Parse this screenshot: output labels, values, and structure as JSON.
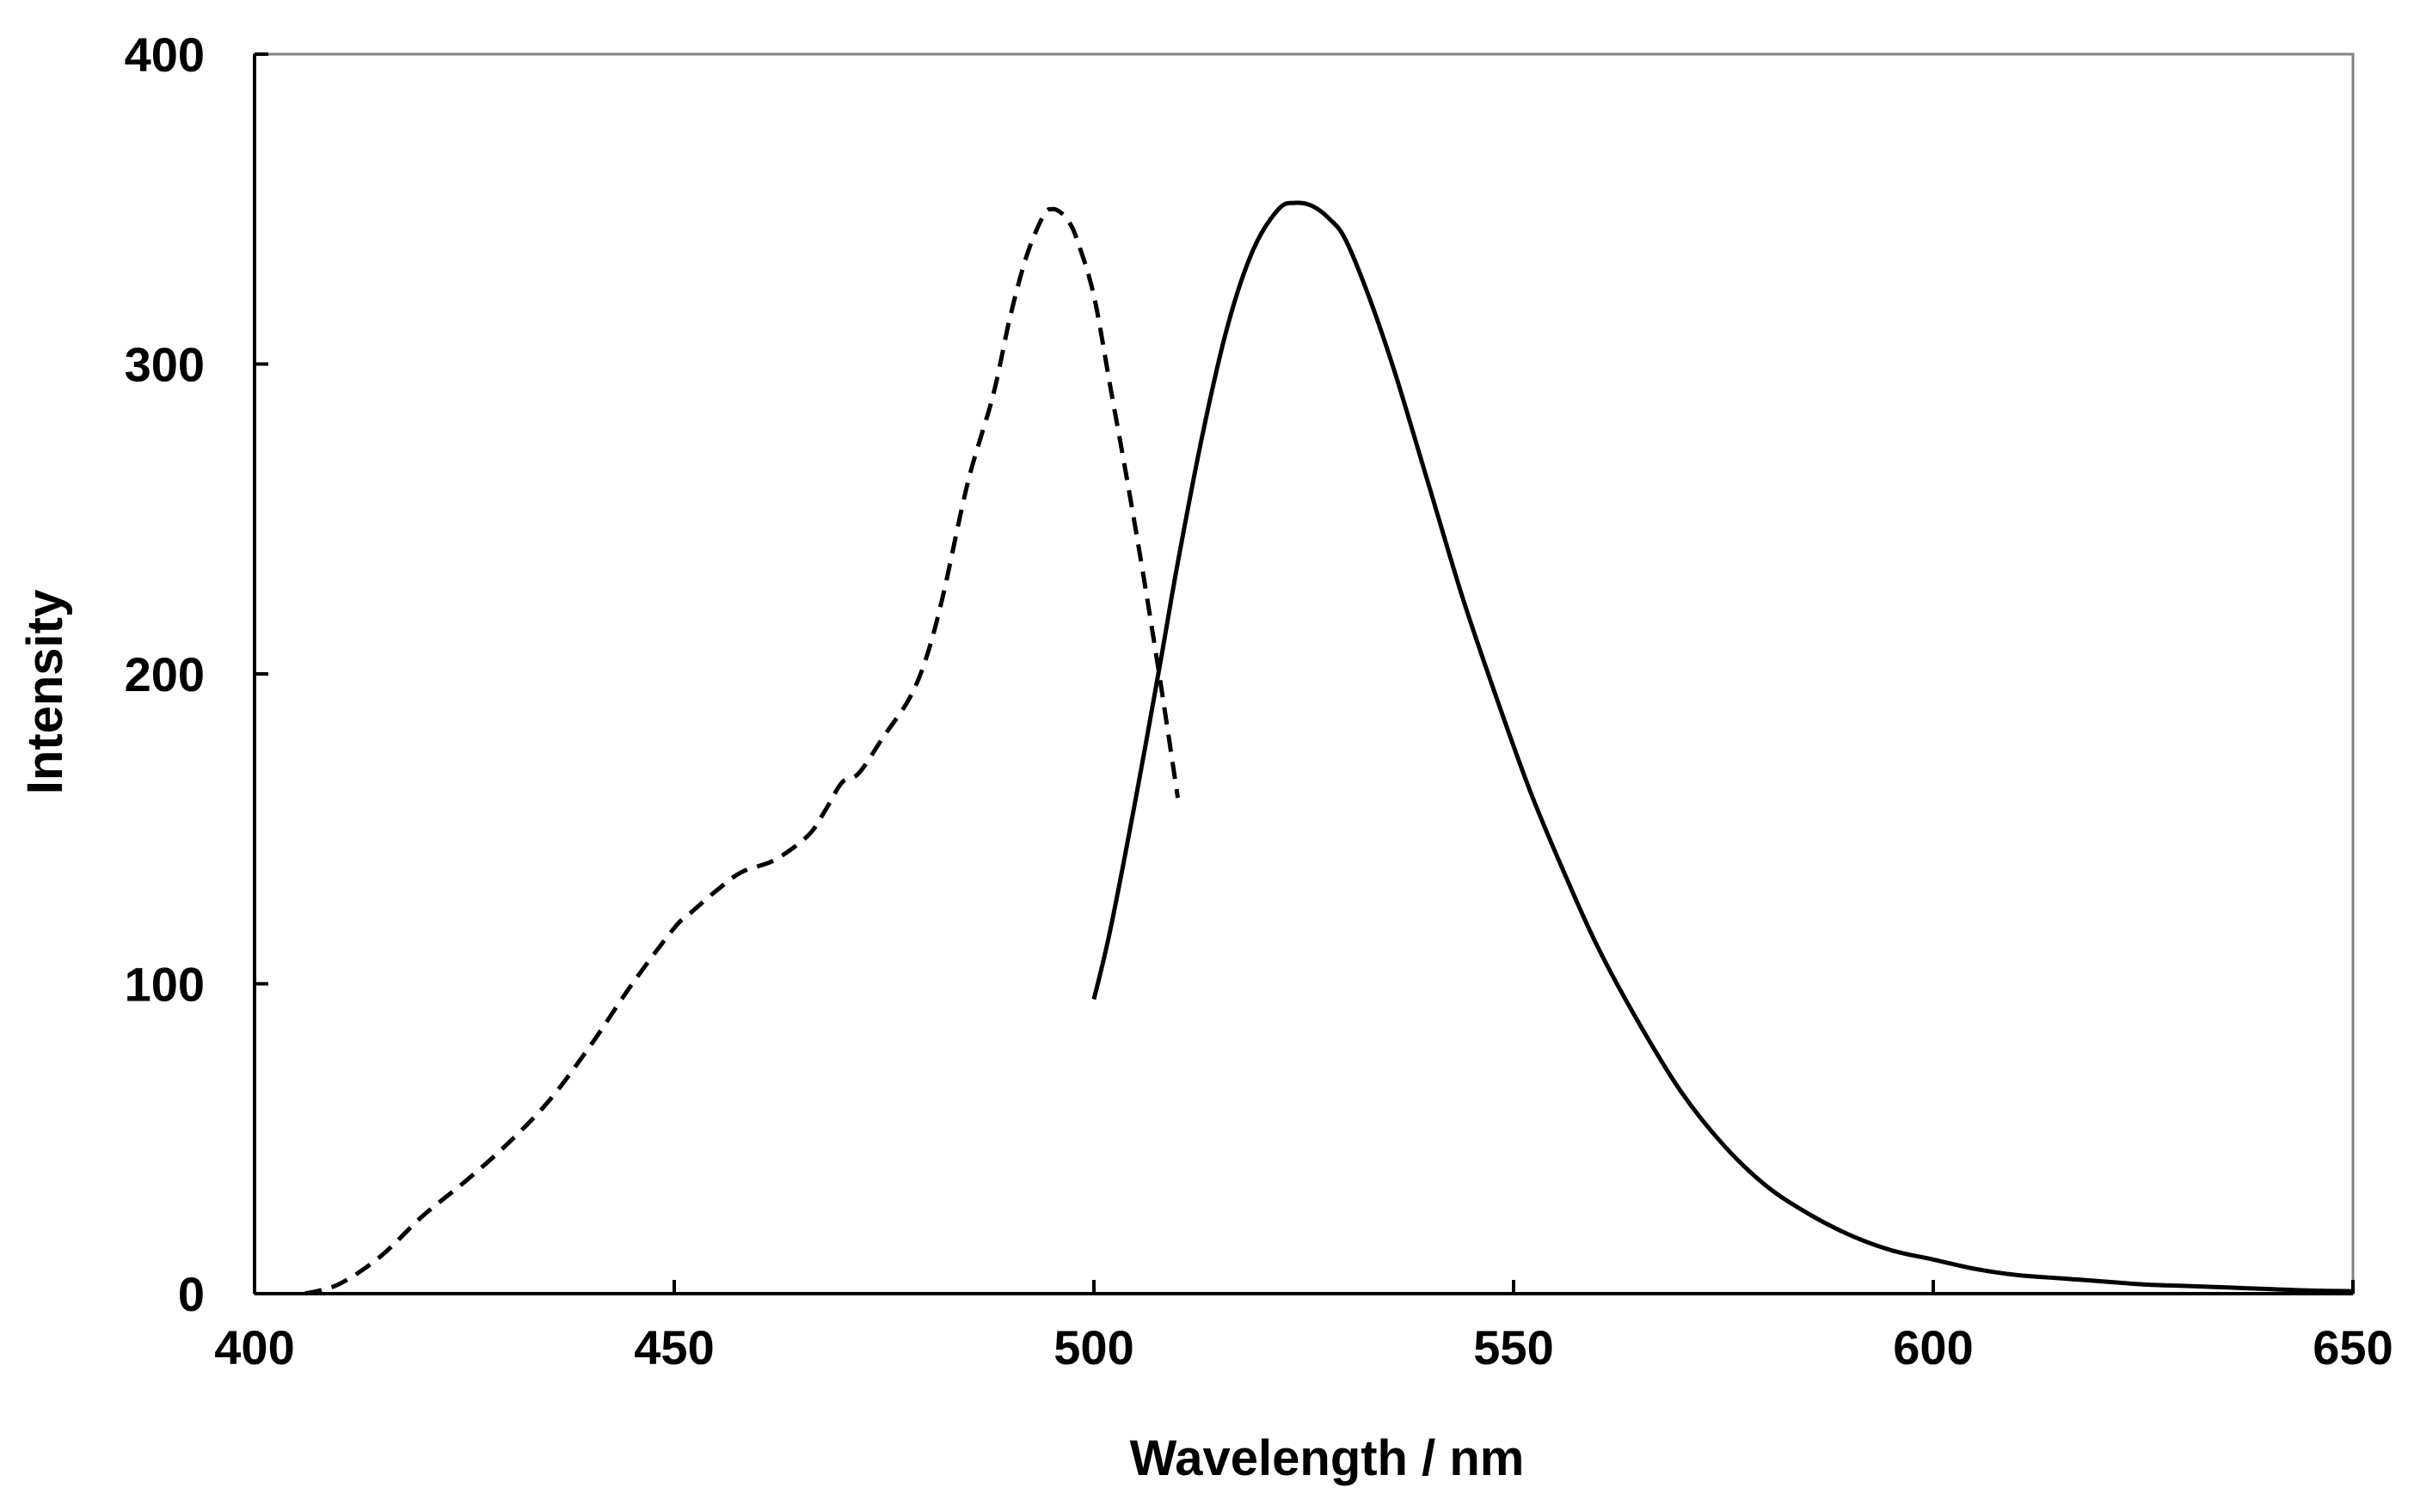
{
  "chart_data": {
    "type": "line",
    "title": "",
    "xlabel": "Wavelength / nm",
    "ylabel": "Intensity",
    "xlim": [
      400,
      650
    ],
    "ylim": [
      0,
      400
    ],
    "xticks": [
      400,
      450,
      500,
      550,
      600,
      650
    ],
    "yticks": [
      0,
      100,
      200,
      300,
      400
    ],
    "xtick_labels": [
      "400",
      "450",
      "500",
      "550",
      "600",
      "650"
    ],
    "ytick_labels": [
      "0",
      "100",
      "200",
      "300",
      "400"
    ],
    "grid": false,
    "legend": "none",
    "series": [
      {
        "style": "dashed",
        "color": "#000000",
        "x": [
          406,
          410,
          415,
          420,
          425,
          430,
          435,
          440,
          445,
          450,
          452,
          455,
          458,
          462,
          466,
          468,
          470,
          472,
          475,
          478,
          480,
          482,
          485,
          488,
          490,
          492,
          494,
          495,
          496,
          497,
          498,
          500,
          502,
          504,
          506,
          508,
          510
        ],
        "y": [
          0,
          3,
          12,
          25,
          36,
          48,
          62,
          80,
          100,
          118,
          123,
          130,
          136,
          140,
          148,
          156,
          165,
          168,
          180,
          192,
          205,
          225,
          262,
          290,
          315,
          335,
          348,
          350,
          349,
          346,
          340,
          322,
          292,
          262,
          230,
          196,
          160
        ]
      },
      {
        "style": "solid",
        "color": "#000000",
        "x": [
          500,
          502,
          505,
          508,
          510,
          513,
          516,
          519,
          522,
          524,
          526,
          528,
          530,
          533,
          536,
          540,
          544,
          548,
          552,
          556,
          560,
          565,
          570,
          575,
          580,
          585,
          590,
          595,
          600,
          605,
          610,
          615,
          620,
          625,
          630,
          635,
          640,
          645,
          650
        ],
        "y": [
          95,
          118,
          160,
          205,
          236,
          278,
          313,
          337,
          350,
          352,
          351,
          347,
          340,
          320,
          296,
          260,
          224,
          192,
          162,
          136,
          112,
          87,
          65,
          48,
          35,
          26,
          19,
          14,
          11,
          8,
          6,
          5,
          4,
          3,
          2.5,
          2,
          1.5,
          1,
          0.8
        ]
      }
    ]
  }
}
